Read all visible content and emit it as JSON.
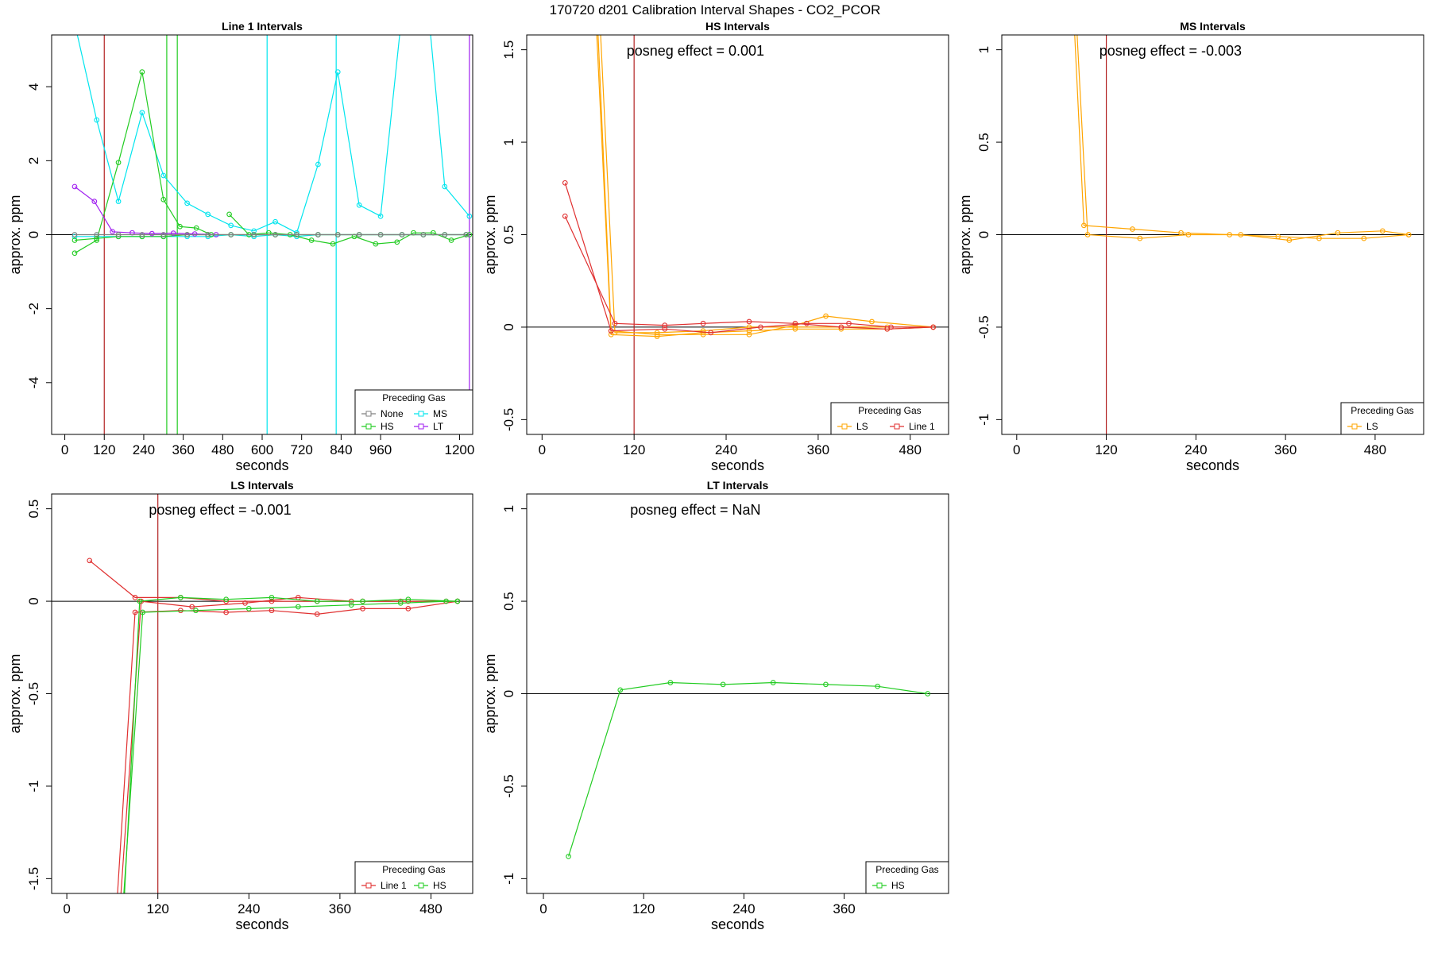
{
  "figure": {
    "title": "170720  d201   Calibration Interval Shapes - CO2_PCOR"
  },
  "chart_data": [
    {
      "type": "line",
      "title": "Line 1 Intervals",
      "xlabel": "seconds",
      "ylabel": "approx. ppm",
      "xlim": [
        -40,
        1240
      ],
      "ylim": [
        -5.4,
        5.4
      ],
      "xticks": [
        0,
        120,
        240,
        360,
        480,
        600,
        720,
        840,
        960,
        1200
      ],
      "yticks": [
        -4,
        -2,
        0,
        2,
        4
      ],
      "vlines": [
        {
          "x": 120,
          "color": "#b22222"
        },
        {
          "x": 310,
          "color": "#22cc22"
        },
        {
          "x": 342,
          "color": "#22cc22"
        },
        {
          "x": 615,
          "color": "#00e5ee"
        },
        {
          "x": 825,
          "color": "#00e5ee"
        },
        {
          "x": 1230,
          "color": "#a020f0"
        }
      ],
      "legend": {
        "title": "Preceding Gas",
        "position": "bottom-right",
        "columns": 2,
        "entries": [
          {
            "label": "None",
            "color": "#808080"
          },
          {
            "label": "MS",
            "color": "#00e5ee"
          },
          {
            "label": "HS",
            "color": "#22cc22"
          },
          {
            "label": "LT",
            "color": "#a020f0"
          }
        ]
      },
      "series": [
        {
          "color": "#00e5ee",
          "x": [
            10,
            97,
            163,
            235,
            300,
            372,
            435,
            505,
            575,
            640,
            705,
            770,
            830,
            895,
            960,
            1025,
            1090,
            1155,
            1230
          ],
          "y": [
            6.5,
            3.1,
            0.9,
            3.3,
            1.6,
            0.85,
            0.55,
            0.25,
            0.1,
            0.35,
            0.05,
            1.9,
            4.4,
            0.8,
            0.5,
            6.0,
            7.5,
            1.3,
            0.5
          ]
        },
        {
          "color": "#00e5ee",
          "x": [
            30,
            97,
            163,
            235,
            300,
            372,
            435,
            505,
            575,
            640,
            705,
            770,
            830,
            895,
            960,
            1025,
            1090,
            1155,
            1220
          ],
          "y": [
            -0.05,
            -0.05,
            -0.05,
            -0.05,
            -0.05,
            -0.05,
            -0.05,
            0.0,
            -0.05,
            0.0,
            -0.05,
            0.0,
            0.0,
            0.0,
            0.0,
            0.0,
            0.0,
            0.0,
            0.0
          ]
        },
        {
          "color": "#22cc22",
          "x": [
            30,
            97,
            163,
            235,
            300,
            350,
            400,
            445
          ],
          "y": [
            -0.5,
            -0.15,
            1.95,
            4.4,
            0.95,
            0.22,
            0.18,
            0.0
          ]
        },
        {
          "color": "#22cc22",
          "x": [
            500,
            560,
            620,
            685,
            750,
            815,
            880,
            945,
            1010,
            1060,
            1120,
            1175,
            1230
          ],
          "y": [
            0.55,
            0.0,
            0.05,
            0.0,
            -0.15,
            -0.25,
            -0.05,
            -0.25,
            -0.2,
            0.05,
            0.05,
            -0.15,
            0.0
          ]
        },
        {
          "color": "#22cc22",
          "x": [
            30,
            97,
            163,
            235,
            300,
            372,
            435,
            505,
            575,
            640,
            705,
            770,
            830,
            895,
            960,
            1025,
            1090,
            1155,
            1220
          ],
          "y": [
            -0.15,
            -0.1,
            -0.05,
            -0.05,
            -0.05,
            0.0,
            0.0,
            0.0,
            0.0,
            0.0,
            0.0,
            0.0,
            0.0,
            0.0,
            0.0,
            0.0,
            0.0,
            0.0,
            0.0
          ]
        },
        {
          "color": "#a020f0",
          "x": [
            30,
            90,
            145,
            205,
            265,
            330,
            395,
            460
          ],
          "y": [
            1.3,
            0.9,
            0.08,
            0.05,
            0.03,
            0.04,
            0.02,
            0.0
          ]
        },
        {
          "color": "#808080",
          "x": [
            30,
            97,
            163,
            235,
            300,
            372,
            435,
            505,
            575,
            640,
            705,
            770,
            830,
            895,
            960,
            1025,
            1090,
            1155,
            1220
          ],
          "y": [
            0.0,
            0.0,
            0.0,
            0.0,
            0.0,
            0.0,
            0.0,
            0.0,
            0.0,
            0.0,
            0.0,
            0.0,
            0.0,
            0.0,
            0.0,
            0.0,
            0.0,
            0.0,
            0.0
          ]
        }
      ]
    },
    {
      "type": "line",
      "title": "HS Intervals",
      "xlabel": "seconds",
      "ylabel": "approx. ppm",
      "xlim": [
        -20,
        530
      ],
      "ylim": [
        -0.58,
        1.58
      ],
      "xticks": [
        0,
        120,
        240,
        360,
        480
      ],
      "yticks": [
        -0.5,
        0.0,
        0.5,
        1.0,
        1.5
      ],
      "vlines": [
        {
          "x": 120,
          "color": "#b22222"
        }
      ],
      "annotation": "posneg effect = 0.001",
      "legend": {
        "title": "Preceding Gas",
        "position": "bottom-right",
        "columns": 2,
        "entries": [
          {
            "label": "LS",
            "color": "#ffa500"
          },
          {
            "label": "Line 1",
            "color": "#e03030"
          }
        ]
      },
      "series": [
        {
          "color": "#ffa500",
          "x": [
            55,
            90,
            150,
            210,
            270,
            330,
            390,
            450,
            510
          ],
          "y": [
            3.0,
            -0.04,
            -0.05,
            -0.03,
            -0.02,
            -0.01,
            -0.01,
            -0.01,
            0.0
          ]
        },
        {
          "color": "#ffa500",
          "x": [
            58,
            90,
            150,
            210,
            270,
            330,
            370,
            430,
            510
          ],
          "y": [
            3.0,
            -0.02,
            -0.04,
            -0.04,
            -0.04,
            0.01,
            0.06,
            0.03,
            0.0
          ]
        },
        {
          "color": "#ffa500",
          "x": [
            60,
            95,
            150,
            210,
            270,
            330,
            390,
            450,
            510
          ],
          "y": [
            3.0,
            -0.03,
            -0.03,
            -0.02,
            0.0,
            0.0,
            0.0,
            0.0,
            0.0
          ]
        },
        {
          "color": "#e03030",
          "x": [
            30,
            90,
            160,
            220,
            285,
            345,
            400,
            455,
            510
          ],
          "y": [
            0.78,
            -0.02,
            -0.01,
            -0.03,
            0.0,
            0.02,
            0.02,
            0.0,
            0.0
          ]
        },
        {
          "color": "#e03030",
          "x": [
            30,
            95,
            160,
            210,
            270,
            330,
            390,
            450,
            510
          ],
          "y": [
            0.6,
            0.02,
            0.01,
            0.02,
            0.03,
            0.02,
            0.0,
            -0.01,
            0.0
          ]
        }
      ]
    },
    {
      "type": "line",
      "title": "MS Intervals",
      "xlabel": "seconds",
      "ylabel": "approx. ppm",
      "xlim": [
        -20,
        545
      ],
      "ylim": [
        -1.08,
        1.08
      ],
      "xticks": [
        0,
        120,
        240,
        360,
        480
      ],
      "yticks": [
        -1.0,
        -0.5,
        0.0,
        0.5,
        1.0
      ],
      "vlines": [
        {
          "x": 120,
          "color": "#b22222"
        }
      ],
      "annotation": "posneg effect = -0.003",
      "legend": {
        "title": "Preceding Gas",
        "position": "bottom-right",
        "columns": 1,
        "entries": [
          {
            "label": "LS",
            "color": "#ffa500"
          }
        ]
      },
      "series": [
        {
          "color": "#ffa500",
          "x": [
            75,
            90,
            155,
            220,
            285,
            350,
            405,
            465,
            525
          ],
          "y": [
            1.3,
            0.05,
            0.03,
            0.01,
            0.0,
            -0.01,
            -0.02,
            -0.02,
            0.0
          ]
        },
        {
          "color": "#ffa500",
          "x": [
            78,
            95,
            165,
            230,
            300,
            365,
            430,
            490,
            525
          ],
          "y": [
            1.3,
            0.0,
            -0.02,
            0.0,
            0.0,
            -0.03,
            0.01,
            0.02,
            0.0
          ]
        }
      ]
    },
    {
      "type": "line",
      "title": "LS Intervals",
      "xlabel": "seconds",
      "ylabel": "approx. ppm",
      "xlim": [
        -20,
        535
      ],
      "ylim": [
        -1.58,
        0.58
      ],
      "xticks": [
        0,
        120,
        240,
        360,
        480
      ],
      "yticks": [
        -1.5,
        -1.0,
        -0.5,
        0.0,
        0.5
      ],
      "vlines": [
        {
          "x": 120,
          "color": "#b22222"
        }
      ],
      "annotation": "posneg effect = -0.001",
      "legend": {
        "title": "Preceding Gas",
        "position": "bottom-right",
        "columns": 2,
        "entries": [
          {
            "label": "Line 1",
            "color": "#e03030"
          },
          {
            "label": "HS",
            "color": "#22cc22"
          }
        ]
      },
      "series": [
        {
          "color": "#e03030",
          "x": [
            30,
            90,
            150,
            210,
            270,
            330,
            390,
            450,
            515
          ],
          "y": [
            0.22,
            0.02,
            0.02,
            0.0,
            0.0,
            0.0,
            0.0,
            0.0,
            0.0
          ]
        },
        {
          "color": "#e03030",
          "x": [
            62,
            90,
            150,
            210,
            270,
            330,
            390,
            450,
            515
          ],
          "y": [
            -1.9,
            -0.06,
            -0.05,
            -0.06,
            -0.05,
            -0.07,
            -0.04,
            -0.04,
            0.0
          ]
        },
        {
          "color": "#e03030",
          "x": [
            66,
            98,
            165,
            235,
            305,
            375,
            440,
            500,
            515
          ],
          "y": [
            -1.9,
            0.0,
            -0.03,
            -0.01,
            0.02,
            0.0,
            0.0,
            0.0,
            0.0
          ]
        },
        {
          "color": "#22cc22",
          "x": [
            70,
            100,
            170,
            240,
            305,
            375,
            440,
            500,
            515
          ],
          "y": [
            -1.9,
            -0.06,
            -0.05,
            -0.04,
            -0.03,
            -0.02,
            -0.01,
            0.0,
            0.0
          ]
        },
        {
          "color": "#22cc22",
          "x": [
            72,
            96,
            150,
            210,
            270,
            330,
            390,
            450,
            515
          ],
          "y": [
            -1.9,
            0.0,
            0.02,
            0.01,
            0.02,
            0.0,
            0.0,
            0.01,
            0.0
          ]
        }
      ]
    },
    {
      "type": "line",
      "title": "LT Intervals",
      "xlabel": "seconds",
      "ylabel": "approx. ppm",
      "xlim": [
        -20,
        485
      ],
      "ylim": [
        -1.08,
        1.08
      ],
      "xticks": [
        0,
        120,
        240,
        360
      ],
      "yticks": [
        -1.0,
        -0.5,
        0.0,
        0.5,
        1.0
      ],
      "vlines": [],
      "annotation": "posneg effect = NaN",
      "legend": {
        "title": "Preceding Gas",
        "position": "bottom-right",
        "columns": 1,
        "entries": [
          {
            "label": "HS",
            "color": "#22cc22"
          }
        ]
      },
      "series": [
        {
          "color": "#22cc22",
          "x": [
            30,
            92,
            152,
            215,
            275,
            338,
            400,
            460
          ],
          "y": [
            -0.88,
            0.02,
            0.06,
            0.05,
            0.06,
            0.05,
            0.04,
            0.0
          ]
        }
      ]
    }
  ]
}
